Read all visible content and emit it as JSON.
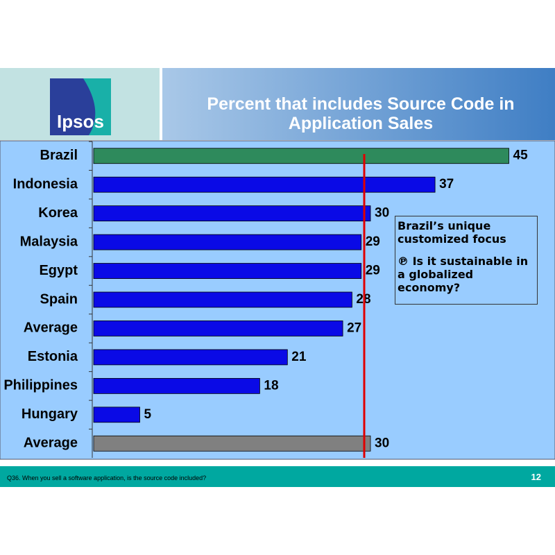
{
  "header": {
    "logo": "Ipsos"
  },
  "chart_data": {
    "type": "bar",
    "orientation": "horizontal",
    "title": "Percent that includes Source Code in Application Sales",
    "categories": [
      "Brazil",
      "Indonesia",
      "Korea",
      "Malaysia",
      "Egypt",
      "Spain",
      "Average",
      "Estonia",
      "Philippines",
      "Hungary",
      "Average"
    ],
    "values": [
      45,
      37,
      30,
      29,
      29,
      28,
      27,
      21,
      18,
      5,
      30
    ],
    "colors": [
      "#2e8a5c",
      "#0a0ae6",
      "#0a0ae6",
      "#0a0ae6",
      "#0a0ae6",
      "#0a0ae6",
      "#0a0ae6",
      "#0a0ae6",
      "#0a0ae6",
      "#0a0ae6",
      "#808080"
    ],
    "xlim": [
      0,
      50
    ],
    "annotation": [
      "Brazil’s unique customized focus",
      "℗ Is it sustainable in a globalized economy?"
    ]
  },
  "footer": {
    "question": "Q36. When you sell a software application, is the source code included?",
    "page": "12"
  }
}
